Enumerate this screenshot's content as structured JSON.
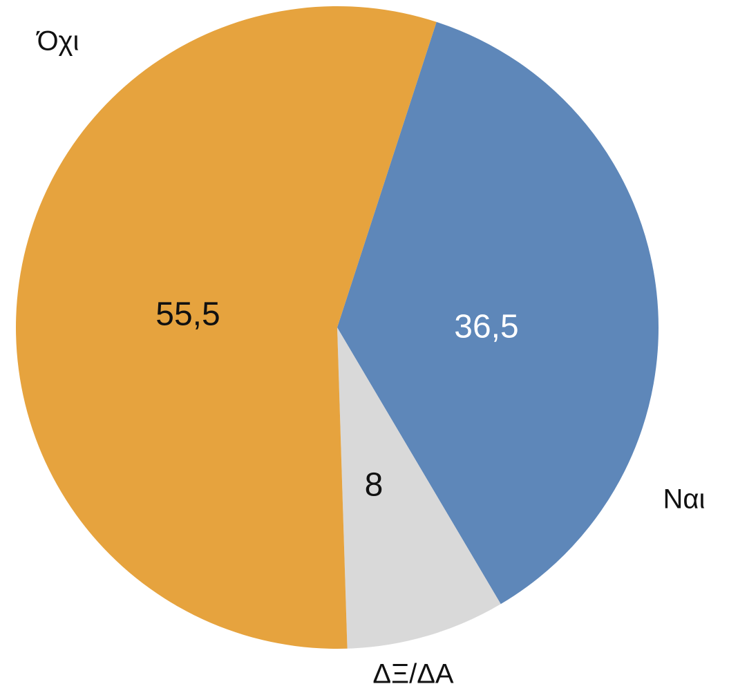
{
  "chart_data": {
    "type": "pie",
    "title": "",
    "slices": [
      {
        "name": "Ναι",
        "value": 36.5,
        "display": "36,5",
        "color": "#5e87b9",
        "label_color": "#ffffff"
      },
      {
        "name": "ΔΞ/ΔΑ",
        "value": 8,
        "display": "8",
        "color": "#d9d9d9",
        "label_color": "#111111"
      },
      {
        "name": "Όχι",
        "value": 55.5,
        "display": "55,5",
        "color": "#e6a33e",
        "label_color": "#111111"
      }
    ],
    "start_angle_deg": 18,
    "direction": "clockwise",
    "legend": "none"
  }
}
